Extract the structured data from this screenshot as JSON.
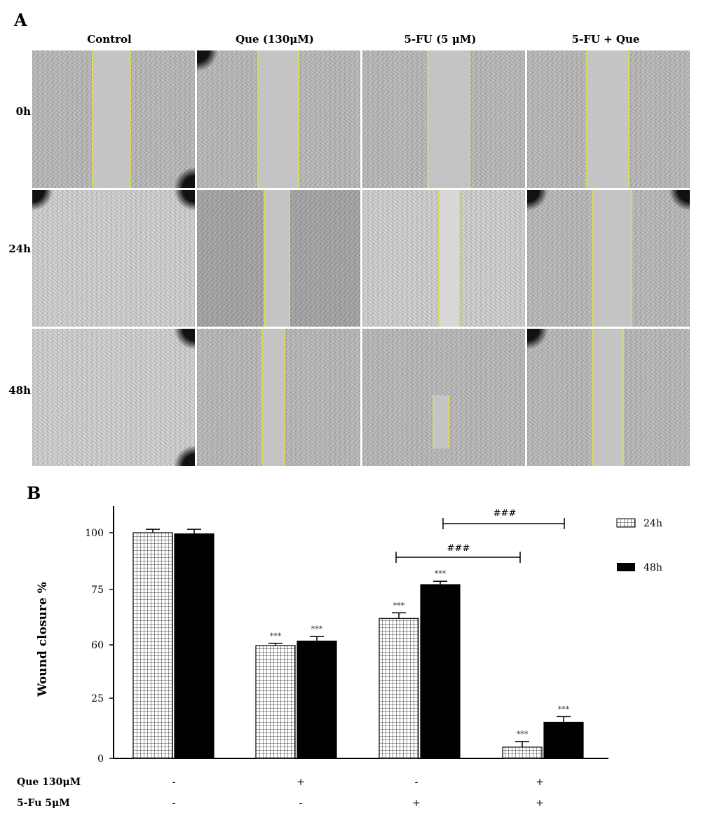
{
  "panel_a": {
    "letter": "A",
    "columns": [
      "Control",
      "Que (130μM)",
      "5-FU (5 μM)",
      "5-FU + Que"
    ],
    "rows": [
      "0h",
      "24h",
      "48h"
    ]
  },
  "chart_data": {
    "type": "bar",
    "panel_letter": "B",
    "categories": [
      "",
      "",
      "",
      ""
    ],
    "series": [
      {
        "name": "24h",
        "values": [
          100,
          50,
          62,
          5
        ],
        "errors": [
          1.5,
          1.0,
          2.5,
          2.5
        ],
        "pattern": "grid",
        "color": "#ffffff"
      },
      {
        "name": "48h",
        "values": [
          99.5,
          52,
          77,
          16
        ],
        "errors": [
          2,
          2,
          1.5,
          2.5
        ],
        "pattern": "solid",
        "color": "#000000"
      }
    ],
    "ylabel": "Wound closure %",
    "yticks": [
      "0",
      "25",
      "60",
      "75",
      "100"
    ],
    "ylim": [
      0,
      100
    ],
    "significance": [
      [
        "",
        "",
        ""
      ],
      [
        "***",
        "***"
      ],
      [
        "***",
        "***"
      ],
      [
        "***",
        "***"
      ]
    ],
    "brackets": [
      {
        "label": "###",
        "from_group": 2,
        "to_group": 3,
        "level": "upper"
      },
      {
        "label": "###",
        "from_group": 2,
        "to_group": 3,
        "level": "lower"
      }
    ],
    "treatment_rows": [
      {
        "label": "Que 130μM",
        "values": [
          "-",
          "+",
          "-",
          "+"
        ]
      },
      {
        "label": "5-Fu 5μM",
        "values": [
          "-",
          "-",
          "+",
          "+"
        ]
      }
    ],
    "legend_position": "top-right"
  }
}
